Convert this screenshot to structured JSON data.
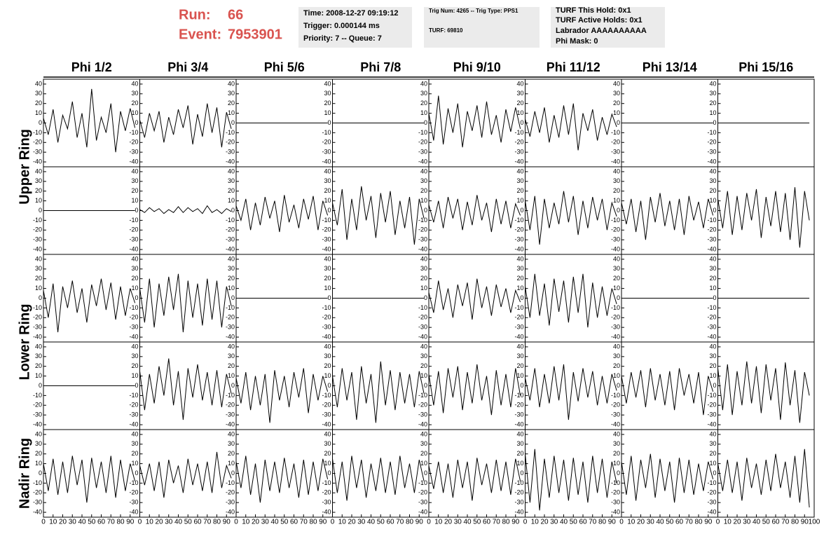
{
  "header": {
    "run_label": "Run:",
    "run": "66",
    "event_label": "Event:",
    "event": "7953901",
    "box1": [
      "Time: 2008-12-27 09:19:12",
      "Trigger: 0.000144 ms",
      "Priority: 7 -- Queue: 7"
    ],
    "box2": [
      "Trig Num: 4265 -- Trig Type: PPS1",
      "TURF: 69810"
    ],
    "box3": [
      "TURF This Hold: 0x1",
      "TURF Active Holds: 0x1",
      "Labrador AAAAAAAAAA",
      "Phi Mask: 0"
    ]
  },
  "chart_data": {
    "type": "line",
    "color": "#000000",
    "columns": [
      "Phi 1/2",
      "Phi 3/4",
      "Phi 5/6",
      "Phi 7/8",
      "Phi 9/10",
      "Phi 11/12",
      "Phi 13/14",
      "Phi 15/16"
    ],
    "rows": [
      "Upper Ring",
      "Lower Ring",
      "Nadir Ring"
    ],
    "xlim": [
      0,
      100
    ],
    "xticks": [
      0,
      10,
      20,
      30,
      40,
      50,
      60,
      70,
      80,
      90,
      100
    ],
    "ylim": [
      -45,
      45
    ],
    "yticks": [
      40,
      30,
      20,
      10,
      0,
      -10,
      -20,
      -30,
      -40
    ],
    "x": [
      0,
      5,
      10,
      15,
      20,
      25,
      30,
      35,
      40,
      45,
      50,
      55,
      60,
      65,
      70,
      75,
      80,
      85,
      90,
      95
    ],
    "panels": [
      {
        "values": [
          5,
          -12,
          14,
          -20,
          8,
          -6,
          22,
          -15,
          10,
          -25,
          35,
          -18,
          6,
          -10,
          20,
          -30,
          12,
          -8,
          15,
          -5
        ]
      },
      {
        "values": [
          3,
          -15,
          10,
          -8,
          12,
          -20,
          6,
          -12,
          14,
          -5,
          18,
          -22,
          9,
          -14,
          20,
          -10,
          16,
          -25,
          11,
          -6
        ]
      },
      {
        "values": [
          0,
          0,
          0,
          0,
          0,
          0,
          0,
          0,
          0,
          0,
          0,
          0,
          0,
          0,
          0,
          0,
          0,
          0,
          0,
          0
        ]
      },
      {
        "values": [
          0,
          0,
          0,
          0,
          0,
          0,
          0,
          0,
          0,
          0,
          0,
          0,
          0,
          0,
          0,
          0,
          0,
          0,
          0,
          0
        ]
      },
      {
        "values": [
          10,
          -18,
          28,
          -22,
          15,
          -10,
          20,
          -25,
          12,
          -8,
          18,
          -15,
          22,
          -12,
          8,
          -20,
          14,
          -9,
          16,
          -6
        ]
      },
      {
        "values": [
          4,
          -14,
          12,
          -10,
          16,
          -20,
          8,
          -15,
          18,
          -12,
          20,
          -28,
          10,
          -8,
          14,
          -18,
          6,
          -12,
          9,
          -4
        ]
      },
      {
        "values": [
          0,
          0,
          0,
          0,
          0,
          0,
          0,
          0,
          0,
          0,
          0,
          0,
          0,
          0,
          0,
          0,
          0,
          0,
          0,
          0
        ]
      },
      {
        "values": [
          0,
          0,
          0,
          0,
          0,
          0,
          0,
          0,
          0,
          0,
          0,
          0,
          0,
          0,
          0,
          0,
          0,
          0,
          0,
          0
        ]
      },
      {
        "values": [
          0,
          0,
          0,
          0,
          0,
          0,
          0,
          0,
          0,
          0,
          0,
          0,
          0,
          0,
          0,
          0,
          0,
          0,
          0,
          0
        ]
      },
      {
        "values": [
          1,
          -2,
          3,
          -1,
          2,
          -3,
          1,
          -2,
          4,
          -2,
          3,
          -1,
          2,
          -3,
          5,
          -2,
          1,
          -3,
          2,
          -1
        ]
      },
      {
        "values": [
          5,
          -10,
          12,
          -20,
          8,
          -15,
          14,
          -8,
          10,
          -22,
          16,
          -12,
          6,
          -18,
          12,
          -9,
          15,
          -20,
          10,
          -5
        ]
      },
      {
        "values": [
          8,
          -15,
          22,
          -30,
          12,
          -20,
          25,
          -10,
          15,
          -28,
          18,
          -12,
          20,
          -25,
          10,
          -18,
          14,
          -35,
          12,
          -8
        ]
      },
      {
        "values": [
          6,
          -12,
          10,
          -18,
          14,
          -8,
          12,
          -20,
          9,
          -15,
          16,
          -10,
          8,
          -22,
          12,
          -14,
          10,
          -18,
          7,
          -5
        ]
      },
      {
        "values": [
          10,
          -20,
          15,
          -35,
          12,
          -18,
          8,
          -14,
          20,
          -12,
          15,
          -25,
          10,
          -18,
          14,
          -10,
          12,
          -20,
          8,
          -6
        ]
      },
      {
        "values": [
          8,
          -14,
          12,
          -22,
          10,
          -30,
          14,
          -12,
          18,
          -16,
          10,
          -20,
          12,
          -25,
          15,
          -10,
          9,
          -18,
          12,
          -5
        ]
      },
      {
        "values": [
          12,
          -18,
          20,
          -25,
          15,
          -20,
          18,
          -10,
          22,
          -28,
          14,
          -16,
          20,
          -22,
          18,
          -30,
          24,
          -38,
          20,
          -10
        ]
      },
      {
        "values": [
          8,
          -20,
          15,
          -35,
          12,
          -10,
          18,
          -15,
          10,
          -25,
          14,
          -8,
          20,
          -12,
          16,
          -22,
          12,
          -18,
          10,
          -5
        ]
      },
      {
        "values": [
          10,
          -25,
          20,
          -30,
          15,
          -18,
          22,
          -12,
          25,
          -35,
          18,
          -20,
          15,
          -28,
          20,
          -22,
          18,
          -30,
          12,
          -8
        ]
      },
      {
        "values": [
          0,
          0,
          0,
          0,
          0,
          0,
          0,
          0,
          0,
          0,
          0,
          0,
          0,
          0,
          0,
          0,
          0,
          0,
          0,
          0
        ]
      },
      {
        "values": [
          0,
          0,
          0,
          0,
          0,
          0,
          0,
          0,
          0,
          0,
          0,
          0,
          0,
          0,
          0,
          0,
          0,
          0,
          0,
          0
        ]
      },
      {
        "values": [
          6,
          -15,
          18,
          -12,
          10,
          -20,
          14,
          -8,
          16,
          -22,
          20,
          -10,
          12,
          -18,
          14,
          -9,
          10,
          -15,
          8,
          -4
        ]
      },
      {
        "values": [
          12,
          -20,
          25,
          -18,
          15,
          -28,
          20,
          -14,
          18,
          -25,
          22,
          -15,
          25,
          -30,
          16,
          -20,
          12,
          -18,
          10,
          -6
        ]
      },
      {
        "values": [
          0,
          0,
          0,
          0,
          0,
          0,
          0,
          0,
          0,
          0,
          0,
          0,
          0,
          0,
          0,
          0,
          0,
          0,
          0,
          0
        ]
      },
      {
        "values": [
          0,
          0,
          0,
          0,
          0,
          0,
          0,
          0,
          0,
          0,
          0,
          0,
          0,
          0,
          0,
          0,
          0,
          0,
          0,
          0
        ]
      },
      {
        "values": [
          0,
          0,
          0,
          0,
          0,
          0,
          0,
          0,
          0,
          0,
          0,
          0,
          0,
          0,
          0,
          0,
          0,
          0,
          0,
          0
        ]
      },
      {
        "values": [
          15,
          -25,
          12,
          -18,
          20,
          -10,
          28,
          -20,
          15,
          -35,
          18,
          -12,
          22,
          -15,
          14,
          -20,
          16,
          -22,
          12,
          -8
        ]
      },
      {
        "values": [
          8,
          -18,
          14,
          -25,
          10,
          -20,
          12,
          -38,
          16,
          -15,
          10,
          -22,
          14,
          -12,
          18,
          -28,
          12,
          -15,
          10,
          -6
        ]
      },
      {
        "values": [
          10,
          -22,
          18,
          -15,
          14,
          -35,
          20,
          -18,
          12,
          -38,
          25,
          -20,
          16,
          -25,
          14,
          -18,
          12,
          -22,
          15,
          -8
        ]
      },
      {
        "values": [
          12,
          -20,
          15,
          -28,
          18,
          -12,
          20,
          -25,
          14,
          -18,
          22,
          -15,
          10,
          -30,
          16,
          -20,
          12,
          -22,
          18,
          -10
        ]
      },
      {
        "values": [
          8,
          -15,
          18,
          -22,
          12,
          -18,
          20,
          -15,
          22,
          -35,
          14,
          -16,
          18,
          -12,
          15,
          -20,
          10,
          -18,
          12,
          -5
        ]
      },
      {
        "values": [
          10,
          -18,
          14,
          -12,
          16,
          -22,
          18,
          -15,
          12,
          -20,
          15,
          -25,
          18,
          -10,
          12,
          -18,
          14,
          -30,
          10,
          -6
        ]
      },
      {
        "values": [
          18,
          -25,
          22,
          -30,
          15,
          -20,
          25,
          -18,
          20,
          -28,
          22,
          -15,
          18,
          -35,
          24,
          -20,
          16,
          -38,
          14,
          -10
        ]
      },
      {
        "values": [
          10,
          -18,
          15,
          -22,
          12,
          -20,
          18,
          -12,
          14,
          -30,
          16,
          -15,
          12,
          -20,
          18,
          -25,
          14,
          -18,
          10,
          -8
        ]
      },
      {
        "values": [
          8,
          -12,
          10,
          -18,
          12,
          -25,
          14,
          -10,
          8,
          -20,
          15,
          -12,
          10,
          -18,
          12,
          -20,
          22,
          -15,
          8,
          -5
        ]
      },
      {
        "values": [
          12,
          -15,
          18,
          -22,
          10,
          -30,
          14,
          -18,
          12,
          -20,
          16,
          -15,
          10,
          -25,
          14,
          -22,
          12,
          -18,
          15,
          -6
        ]
      },
      {
        "values": [
          15,
          -20,
          12,
          -28,
          18,
          -15,
          14,
          -25,
          10,
          -18,
          16,
          -20,
          12,
          -22,
          18,
          -15,
          10,
          -20,
          14,
          -8
        ]
      },
      {
        "values": [
          8,
          -16,
          12,
          -20,
          10,
          -25,
          14,
          -15,
          12,
          -28,
          16,
          -12,
          10,
          -20,
          14,
          -18,
          12,
          -22,
          15,
          -8
        ]
      },
      {
        "values": [
          20,
          -30,
          25,
          -38,
          15,
          -25,
          18,
          -20,
          14,
          -28,
          16,
          -22,
          12,
          -30,
          18,
          -20,
          15,
          -25,
          12,
          -10
        ]
      },
      {
        "values": [
          12,
          -22,
          18,
          -28,
          14,
          -15,
          20,
          -25,
          15,
          -18,
          12,
          -30,
          16,
          -20,
          14,
          -22,
          10,
          -18,
          12,
          -6
        ]
      },
      {
        "values": [
          10,
          -18,
          14,
          -20,
          12,
          -28,
          16,
          -15,
          10,
          -22,
          14,
          -18,
          20,
          -15,
          12,
          -25,
          18,
          -30,
          25,
          -35
        ]
      }
    ]
  }
}
